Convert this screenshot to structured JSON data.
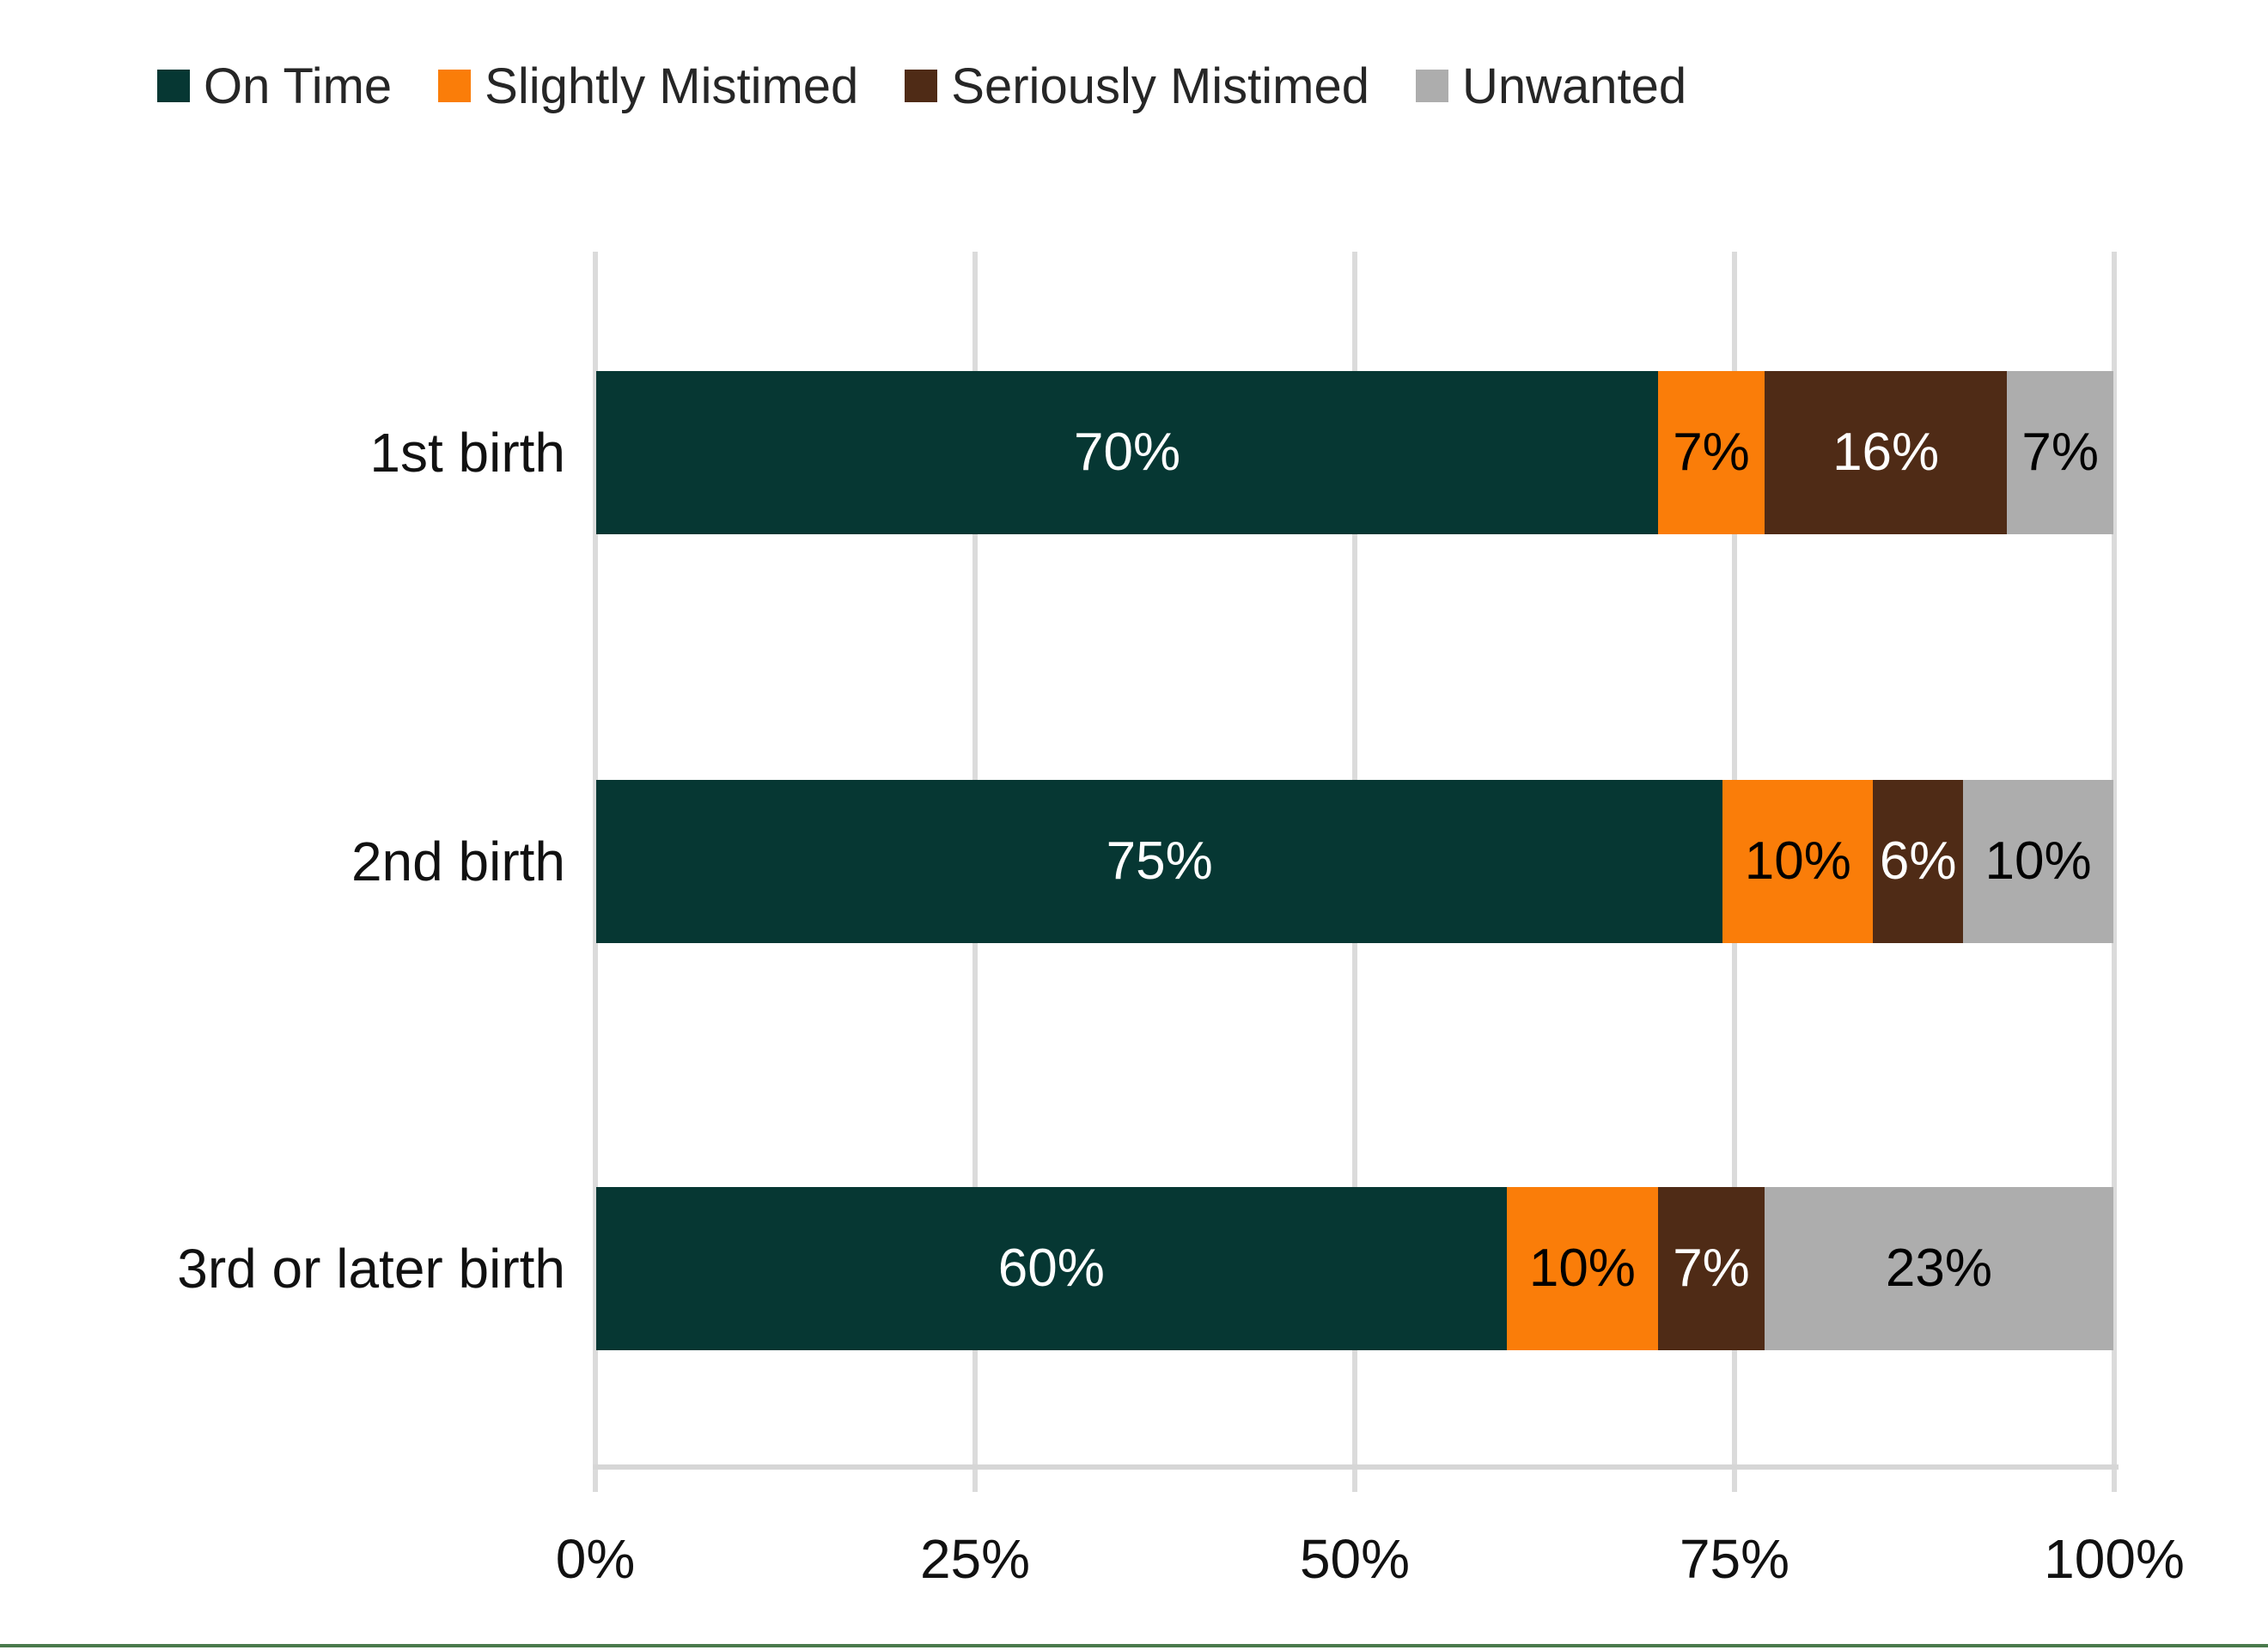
{
  "page": {
    "background_color": "#FFFFFF",
    "bottom_rule_color": "#4A7A4C"
  },
  "chart_data": {
    "type": "bar",
    "variant": "horizontal-stacked",
    "title": "",
    "xlabel": "",
    "ylabel": "",
    "grid": "vertical-on",
    "legend_position": "top",
    "categories": [
      "1st birth",
      "2nd birth",
      "3rd or later birth"
    ],
    "series": [
      {
        "name": "On Time",
        "color": "#063733",
        "label_color": "#FFFFFF",
        "values": [
          70,
          75,
          60
        ]
      },
      {
        "name": "Slightly Mistimed",
        "color": "#FA7D09",
        "label_color": "#000000",
        "values": [
          7,
          10,
          10
        ]
      },
      {
        "name": "Seriously Mistimed",
        "color": "#4F2B16",
        "label_color": "#FFFFFF",
        "values": [
          16,
          6,
          7
        ]
      },
      {
        "name": "Unwanted",
        "color": "#ADADAD",
        "label_color": "#000000",
        "values": [
          7,
          10,
          23
        ]
      }
    ],
    "data_labels": [
      [
        "70%",
        "7%",
        "16%",
        "7%"
      ],
      [
        "75%",
        "10%",
        "6%",
        "10%"
      ],
      [
        "60%",
        "10%",
        "7%",
        "23%"
      ]
    ],
    "x_axis": {
      "min": 0,
      "max": 100,
      "ticks": [
        "0%",
        "25%",
        "50%",
        "75%",
        "100%"
      ]
    },
    "gridline_color": "#DBDBDB",
    "axis_line_color": "#D6D6D6",
    "legend_text_color": "#262626",
    "axis_text_color": "#111111"
  }
}
